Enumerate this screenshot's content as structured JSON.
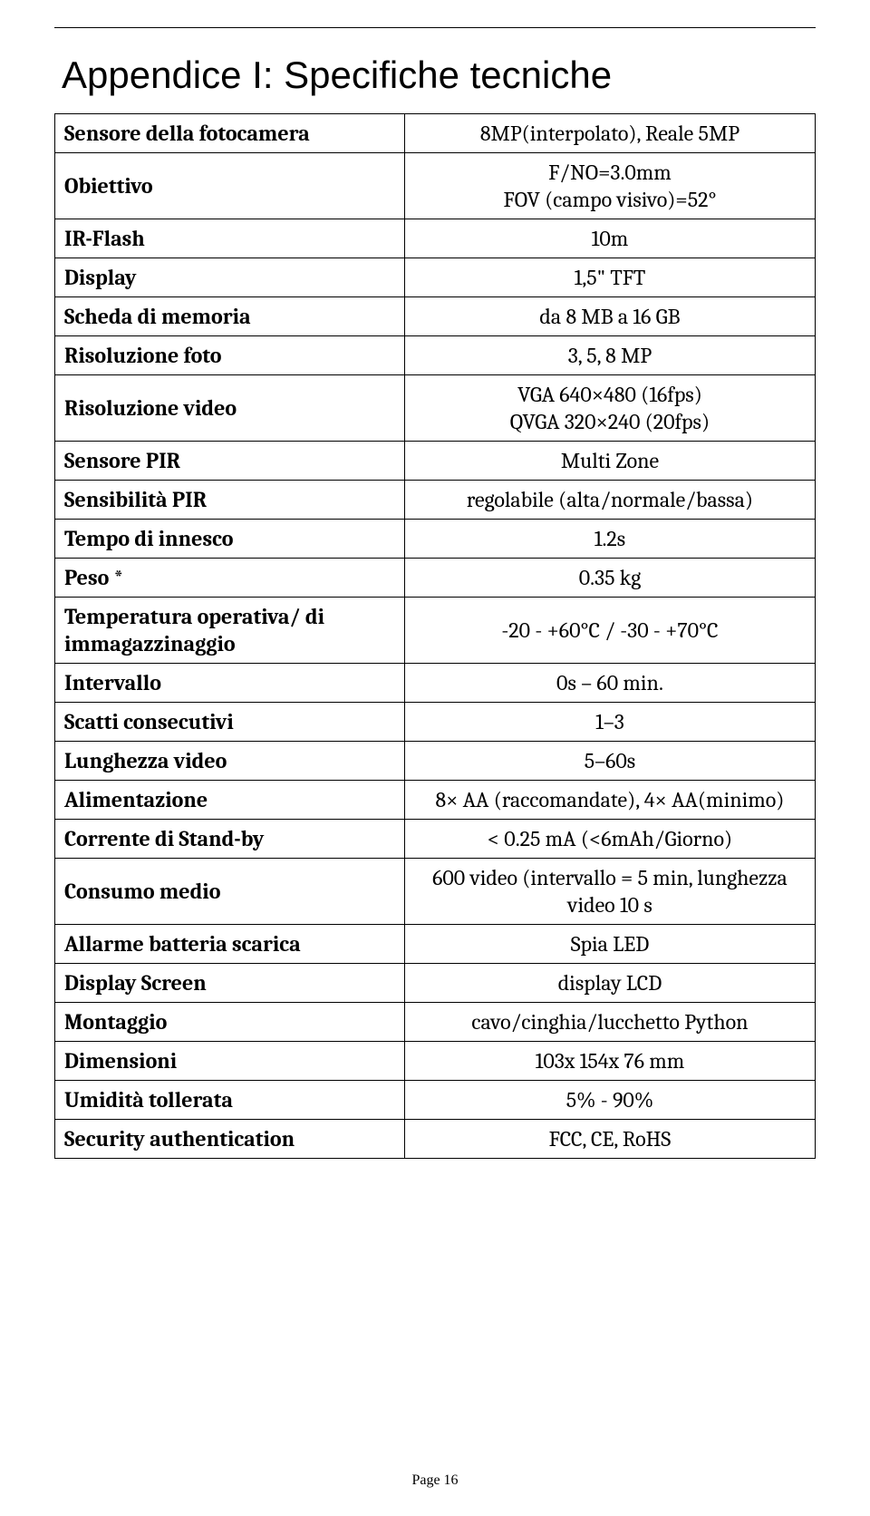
{
  "page": {
    "title": "Appendice I: Specifiche tecniche",
    "footer": "Page 16"
  },
  "specs": [
    {
      "label": "Sensore della fotocamera",
      "value": "8MP(interpolato), Reale 5MP"
    },
    {
      "label": "Obiettivo",
      "value": "F/NO=3.0mm\nFOV (campo visivo)=52°"
    },
    {
      "label": "IR-Flash",
      "value": "10m"
    },
    {
      "label": "Display",
      "value": "1,5\" TFT"
    },
    {
      "label": "Scheda di memoria",
      "value": "da 8 MB a 16 GB"
    },
    {
      "label": "Risoluzione foto",
      "value": "3, 5, 8 MP"
    },
    {
      "label": "Risoluzione video",
      "value": "VGA 640×480 (16fps)\nQVGA 320×240 (20fps)"
    },
    {
      "label": "Sensore PIR",
      "value": "Multi Zone"
    },
    {
      "label": "Sensibilità PIR",
      "value": "regolabile (alta/normale/bassa)"
    },
    {
      "label": "Tempo di innesco",
      "value": "1.2s"
    },
    {
      "label": "Peso *",
      "value": "0.35 kg"
    },
    {
      "label": "Temperatura operativa/ di immagazzinaggio",
      "value": "-20 - +60°C / -30 - +70°C"
    },
    {
      "label": "Intervallo",
      "value": "0s – 60 min."
    },
    {
      "label": "Scatti consecutivi",
      "value": "1–3"
    },
    {
      "label": "Lunghezza video",
      "value": "5–60s"
    },
    {
      "label": "Alimentazione",
      "value": "8× AA (raccomandate), 4× AA(minimo)"
    },
    {
      "label": "Corrente di Stand-by",
      "value": "< 0.25 mA (<6mAh/Giorno)"
    },
    {
      "label": "Consumo medio",
      "value": "600 video (intervallo = 5 min, lunghezza video 10 s"
    },
    {
      "label": "Allarme batteria scarica",
      "value": "Spia LED"
    },
    {
      "label": "Display Screen",
      "value": "display LCD"
    },
    {
      "label": "Montaggio",
      "value": "cavo/cinghia/lucchetto Python"
    },
    {
      "label": "Dimensioni",
      "value": "103x 154x 76 mm"
    },
    {
      "label": "Umidità tollerata",
      "value": "5% - 90%"
    },
    {
      "label": "Security authentication",
      "value": "FCC, CE, RoHS"
    }
  ]
}
